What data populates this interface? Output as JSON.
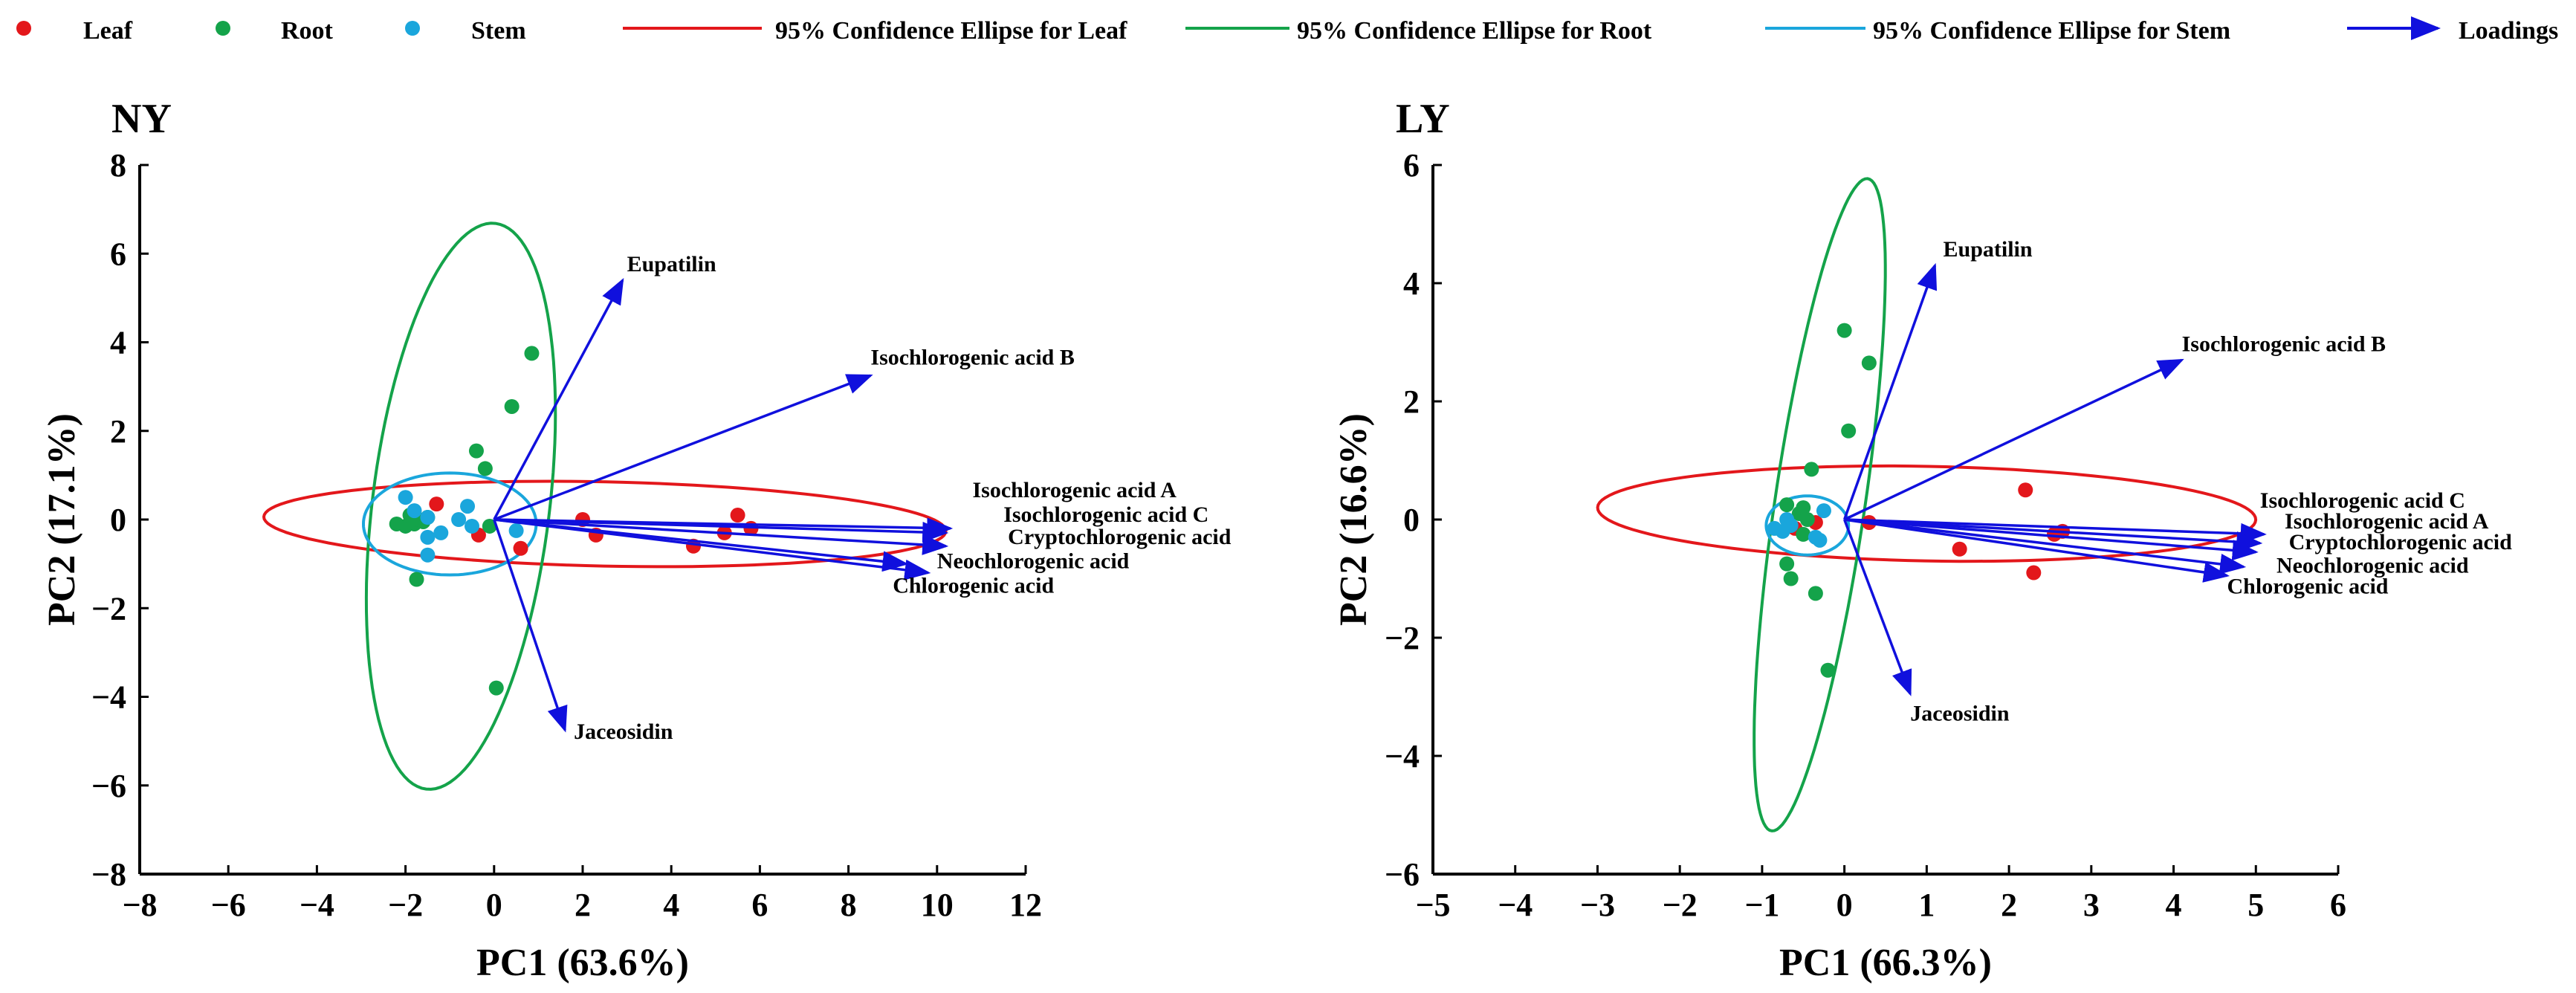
{
  "legend": {
    "leaf": "Leaf",
    "root": "Root",
    "stem": "Stem",
    "ellipse_leaf": "95% Confidence Ellipse for Leaf",
    "ellipse_root": "95% Confidence Ellipse for Root",
    "ellipse_stem": "95% Confidence Ellipse for Stem",
    "loadings": "Loadings"
  },
  "colors": {
    "leaf": "#e3171b",
    "root": "#14a34a",
    "stem": "#1aa6dc",
    "loadings": "#1010dd"
  },
  "chart_data": [
    {
      "type": "scatter",
      "title": "NY",
      "xlabel": "PC1 (63.6%)",
      "ylabel": "PC2 (17.1%)",
      "xlim": [
        -8,
        12
      ],
      "ylim": [
        -8,
        8
      ],
      "xticks": [
        -8,
        -6,
        -4,
        -2,
        0,
        2,
        4,
        6,
        8,
        10,
        12
      ],
      "yticks": [
        -8,
        -6,
        -4,
        -2,
        0,
        2,
        4,
        6,
        8
      ],
      "series": [
        {
          "name": "Leaf",
          "group": "leaf",
          "points": [
            [
              -1.3,
              0.35
            ],
            [
              -0.35,
              -0.35
            ],
            [
              0.6,
              -0.65
            ],
            [
              2.0,
              0.0
            ],
            [
              2.3,
              -0.35
            ],
            [
              4.5,
              -0.6
            ],
            [
              5.2,
              -0.3
            ],
            [
              5.5,
              0.1
            ],
            [
              5.8,
              -0.2
            ]
          ]
        },
        {
          "name": "Root",
          "group": "root",
          "points": [
            [
              -2.2,
              -0.1
            ],
            [
              -2.0,
              -0.15
            ],
            [
              -1.9,
              0.1
            ],
            [
              -1.8,
              -0.1
            ],
            [
              -1.7,
              0.0
            ],
            [
              -1.6,
              -0.05
            ],
            [
              -1.5,
              0.05
            ],
            [
              -0.4,
              1.55
            ],
            [
              -0.2,
              1.15
            ],
            [
              -0.1,
              -0.15
            ],
            [
              0.4,
              2.55
            ],
            [
              0.85,
              3.75
            ],
            [
              -1.75,
              -1.35
            ],
            [
              0.05,
              -3.8
            ]
          ]
        },
        {
          "name": "Stem",
          "group": "stem",
          "points": [
            [
              -2.0,
              0.5
            ],
            [
              -1.8,
              0.2
            ],
            [
              -1.5,
              0.05
            ],
            [
              -1.5,
              -0.4
            ],
            [
              -1.2,
              -0.3
            ],
            [
              -0.8,
              0.0
            ],
            [
              -0.6,
              0.3
            ],
            [
              -0.5,
              -0.15
            ],
            [
              -1.5,
              -0.8
            ],
            [
              0.5,
              -0.25
            ]
          ]
        }
      ],
      "ellipses": [
        {
          "name": "95% Confidence Ellipse for Leaf",
          "group": "leaf",
          "center": [
            2.5,
            -0.1
          ],
          "rx": 7.7,
          "ry": 0.95,
          "angle": -1.2
        },
        {
          "name": "95% Confidence Ellipse for Root",
          "group": "root",
          "center": [
            -0.75,
            0.3
          ],
          "rx": 6.43,
          "ry": 2.0,
          "angle": 83
        },
        {
          "name": "95% Confidence Ellipse for Stem",
          "group": "stem",
          "center": [
            -1.0,
            -0.1
          ],
          "rx": 1.95,
          "ry": 1.15,
          "angle": 0
        }
      ],
      "loadings": [
        {
          "name": "Eupatilin",
          "x": 2.9,
          "y": 5.4,
          "label_at": [
            3.0,
            5.6
          ]
        },
        {
          "name": "Isochlorogenic acid B",
          "x": 8.5,
          "y": 3.25,
          "label_at": [
            8.5,
            3.5
          ]
        },
        {
          "name": "Isochlorogenic acid A",
          "x": 10.3,
          "y": -0.2,
          "label_at": [
            10.8,
            0.5
          ]
        },
        {
          "name": "Isochlorogenic acid C",
          "x": 10.2,
          "y": -0.3,
          "label_at": [
            11.5,
            -0.05
          ]
        },
        {
          "name": "Cryptochlorogenic acid",
          "x": 10.2,
          "y": -0.6,
          "label_at": [
            11.6,
            -0.55
          ]
        },
        {
          "name": "Neochlorogenic acid",
          "x": 9.8,
          "y": -1.2,
          "label_at": [
            10.0,
            -1.1
          ]
        },
        {
          "name": "Chlorogenic acid",
          "x": 9.3,
          "y": -1.0,
          "label_at": [
            9.0,
            -1.65
          ]
        },
        {
          "name": "Jaceosidin",
          "x": 1.6,
          "y": -4.75,
          "label_at": [
            1.8,
            -4.95
          ]
        }
      ]
    },
    {
      "type": "scatter",
      "title": "LY",
      "xlabel": "PC1 (66.3%)",
      "ylabel": "PC2 (16.6%)",
      "xlim": [
        -5,
        6
      ],
      "ylim": [
        -6,
        6
      ],
      "xticks": [
        -5,
        -4,
        -3,
        -2,
        -1,
        0,
        1,
        2,
        3,
        4,
        5,
        6
      ],
      "yticks": [
        -6,
        -4,
        -2,
        0,
        2,
        4,
        6
      ],
      "series": [
        {
          "name": "Leaf",
          "group": "leaf",
          "points": [
            [
              -0.6,
              -0.15
            ],
            [
              -0.35,
              -0.05
            ],
            [
              0.3,
              -0.05
            ],
            [
              1.4,
              -0.5
            ],
            [
              2.2,
              0.5
            ],
            [
              2.3,
              -0.9
            ],
            [
              2.55,
              -0.25
            ],
            [
              2.65,
              -0.2
            ]
          ]
        },
        {
          "name": "Root",
          "group": "root",
          "points": [
            [
              -0.7,
              0.25
            ],
            [
              -0.55,
              0.1
            ],
            [
              -0.5,
              0.2
            ],
            [
              -0.45,
              0.0
            ],
            [
              -0.5,
              -0.25
            ],
            [
              -0.4,
              0.85
            ],
            [
              -0.7,
              -0.75
            ],
            [
              -0.65,
              -1.0
            ],
            [
              -0.35,
              -1.25
            ],
            [
              -0.2,
              -2.55
            ],
            [
              0.0,
              3.2
            ],
            [
              0.05,
              1.5
            ],
            [
              0.3,
              2.65
            ]
          ]
        },
        {
          "name": "Stem",
          "group": "stem",
          "points": [
            [
              -0.85,
              -0.15
            ],
            [
              -0.75,
              -0.2
            ],
            [
              -0.7,
              0.0
            ],
            [
              -0.65,
              -0.1
            ],
            [
              -0.35,
              -0.3
            ],
            [
              -0.3,
              -0.35
            ],
            [
              -0.25,
              0.15
            ]
          ]
        }
      ],
      "ellipses": [
        {
          "name": "95% Confidence Ellipse for Leaf",
          "group": "leaf",
          "center": [
            1.0,
            0.1
          ],
          "rx": 4.0,
          "ry": 0.8,
          "angle": -1.5
        },
        {
          "name": "95% Confidence Ellipse for Root",
          "group": "root",
          "center": [
            -0.3,
            0.25
          ],
          "rx": 5.55,
          "ry": 0.55,
          "angle": 84
        },
        {
          "name": "95% Confidence Ellipse for Stem",
          "group": "stem",
          "center": [
            -0.45,
            -0.1
          ],
          "rx": 0.5,
          "ry": 0.5,
          "angle": 0
        }
      ],
      "loadings": [
        {
          "name": "Eupatilin",
          "x": 1.1,
          "y": 4.3,
          "label_at": [
            1.2,
            4.45
          ]
        },
        {
          "name": "Isochlorogenic acid B",
          "x": 4.1,
          "y": 2.7,
          "label_at": [
            4.1,
            2.85
          ]
        },
        {
          "name": "Isochlorogenic acid C",
          "x": 5.1,
          "y": -0.25,
          "label_at": [
            5.05,
            0.2
          ]
        },
        {
          "name": "Isochlorogenic acid A",
          "x": 5.05,
          "y": -0.4,
          "label_at": [
            5.35,
            -0.15
          ]
        },
        {
          "name": "Cryptochlorogenic acid",
          "x": 5.0,
          "y": -0.55,
          "label_at": [
            5.4,
            -0.5
          ]
        },
        {
          "name": "Neochlorogenic acid",
          "x": 4.85,
          "y": -0.8,
          "label_at": [
            5.25,
            -0.9
          ]
        },
        {
          "name": "Chlorogenic acid",
          "x": 4.65,
          "y": -0.95,
          "label_at": [
            4.65,
            -1.25
          ]
        },
        {
          "name": "Jaceosidin",
          "x": 0.8,
          "y": -2.95,
          "label_at": [
            0.8,
            -3.4
          ]
        }
      ]
    }
  ]
}
